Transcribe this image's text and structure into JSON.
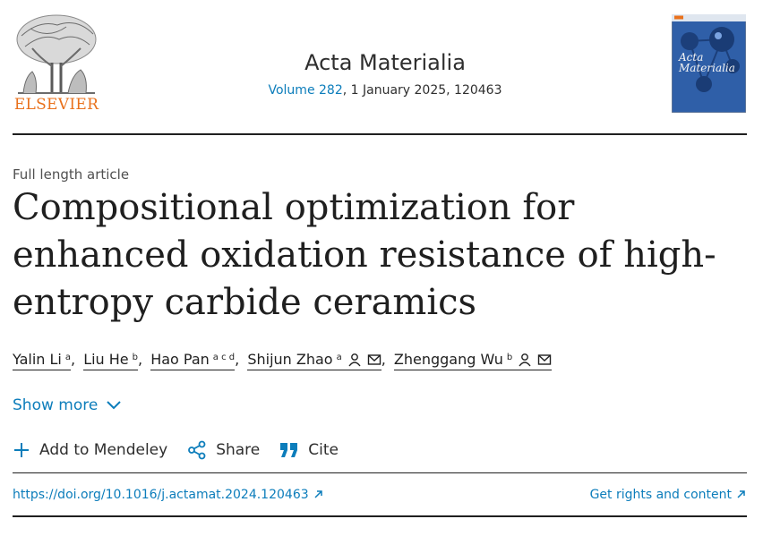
{
  "header": {
    "publisher": "ELSEVIER",
    "journal_title": "Acta Materialia",
    "volume_link": "Volume 282",
    "citation_rest": ", 1 January 2025, 120463"
  },
  "cover": {
    "journal_lines": [
      "Acta",
      "Materialia"
    ]
  },
  "article": {
    "type": "Full length article",
    "title": "Compositional optimization for enhanced oxidation resistance of high-entropy carbide ceramics"
  },
  "authors": [
    {
      "name": "Yalin Li",
      "affil": "a"
    },
    {
      "name": "Liu He",
      "affil": "b"
    },
    {
      "name": "Hao Pan",
      "affil": "a c d"
    },
    {
      "name": "Shijun Zhao",
      "affil": "a"
    },
    {
      "name": "Zhenggang Wu",
      "affil": "b"
    }
  ],
  "show_more_label": "Show more",
  "actions": {
    "mendeley": "Add to Mendeley",
    "share": "Share",
    "cite": "Cite"
  },
  "links": {
    "doi": "https://doi.org/10.1016/j.actamat.2024.120463",
    "rights": "Get rights and content"
  },
  "colors": {
    "link": "#0c7dbb",
    "elsevier_orange": "#e9711c"
  }
}
